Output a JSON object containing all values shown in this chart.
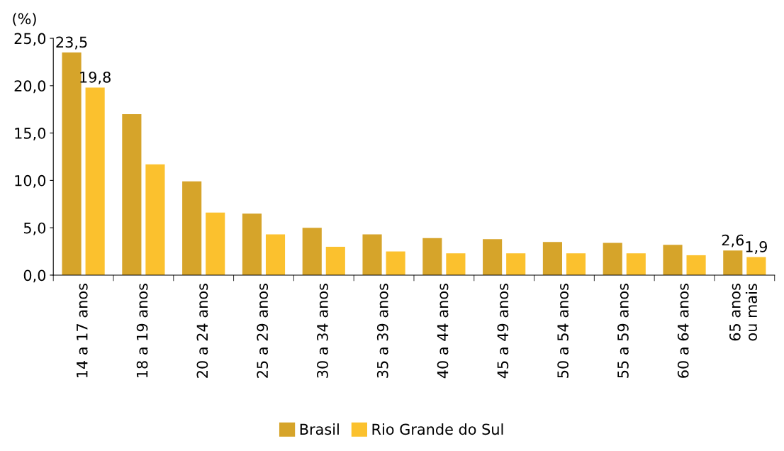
{
  "chart_data": {
    "type": "bar",
    "ylabel": "(%)",
    "categories": [
      "14 a 17 anos",
      "18 a 19 anos",
      "20 a 24 anos",
      "25 a 29 anos",
      "30 a 34 anos",
      "35 a 39 anos",
      "40 a 44 anos",
      "45 a 49 anos",
      "50 a 54 anos",
      "55 a 59 anos",
      "60 a 64 anos",
      "65 anos\nou mais"
    ],
    "series": [
      {
        "name": "Brasil",
        "color": "#d6a42a",
        "values": [
          23.5,
          17.0,
          9.9,
          6.5,
          5.0,
          4.3,
          3.9,
          3.8,
          3.5,
          3.4,
          3.2,
          2.6
        ],
        "value_labels": [
          "23,5",
          null,
          null,
          null,
          null,
          null,
          null,
          null,
          null,
          null,
          null,
          "2,6"
        ]
      },
      {
        "name": "Rio Grande do Sul",
        "color": "#fbc12e",
        "values": [
          19.8,
          11.7,
          6.6,
          4.3,
          3.0,
          2.5,
          2.3,
          2.3,
          2.3,
          2.3,
          2.1,
          1.9
        ],
        "value_labels": [
          "19,8",
          null,
          null,
          null,
          null,
          null,
          null,
          null,
          null,
          null,
          null,
          "1,9"
        ]
      }
    ],
    "ylim": [
      0,
      25
    ],
    "yticks": [
      {
        "value": 0,
        "label": "0,0"
      },
      {
        "value": 5,
        "label": "5,0"
      },
      {
        "value": 10,
        "label": "10,0"
      },
      {
        "value": 15,
        "label": "15,0"
      },
      {
        "value": 20,
        "label": "20,0"
      },
      {
        "value": 25,
        "label": "25,0"
      }
    ],
    "grid": false,
    "legend": "bottom"
  }
}
